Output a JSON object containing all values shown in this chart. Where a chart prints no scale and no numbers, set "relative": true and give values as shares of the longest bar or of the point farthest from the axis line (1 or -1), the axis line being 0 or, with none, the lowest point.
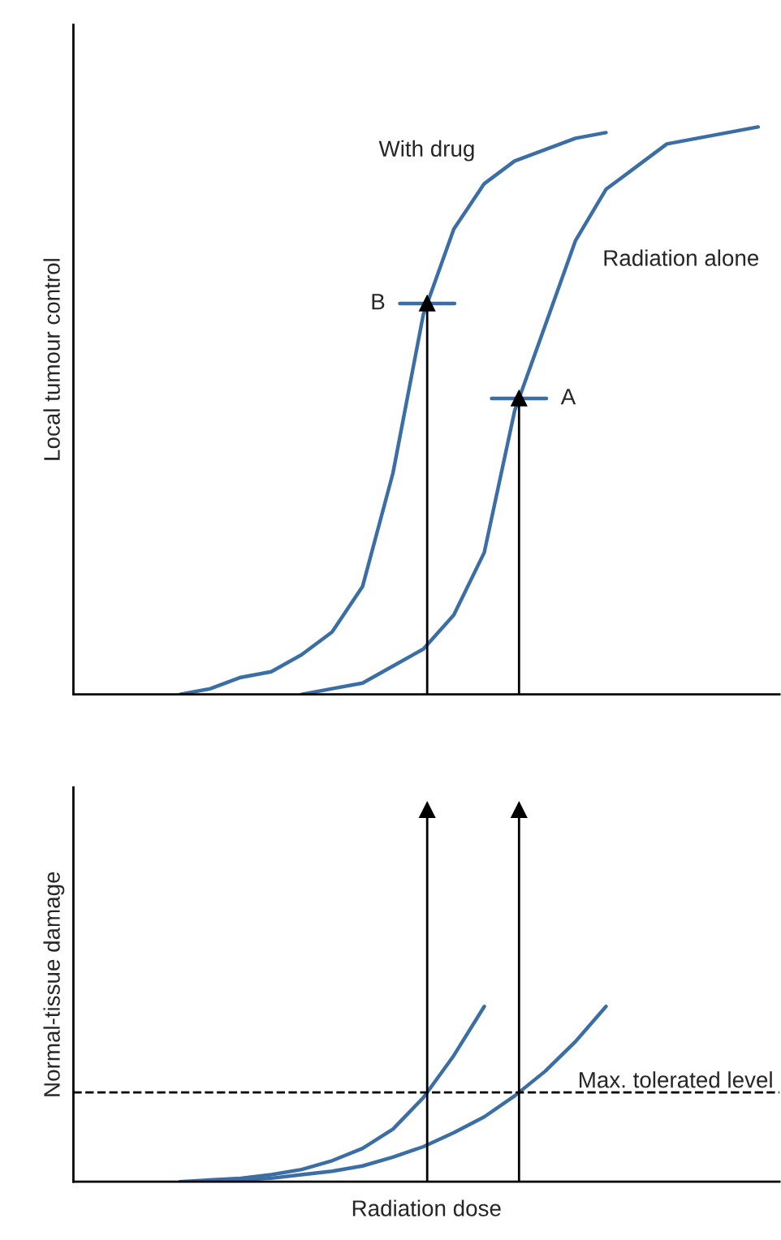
{
  "chart_data": [
    {
      "type": "line",
      "relative": true,
      "ylabel": "Local tumour control",
      "categories": [
        null,
        null,
        null,
        null,
        null,
        null,
        null,
        null,
        null,
        null,
        null,
        null,
        null,
        null,
        null,
        null,
        null,
        null,
        null,
        null,
        null,
        null,
        null
      ],
      "series": [
        {
          "name": "With drug",
          "color": "#3a6ea5",
          "values": [
            null,
            null,
            null,
            0,
            0.01,
            0.03,
            0.04,
            0.07,
            0.11,
            0.19,
            0.39,
            0.67,
            0.82,
            0.9,
            0.94,
            0.96,
            0.98,
            0.99,
            null,
            null,
            null,
            null,
            null
          ]
        },
        {
          "name": "Radiation alone",
          "color": "#3a6ea5",
          "values": [
            null,
            null,
            null,
            null,
            null,
            null,
            null,
            0,
            0.01,
            0.02,
            0.05,
            0.08,
            0.14,
            0.25,
            0.5,
            0.65,
            0.8,
            0.89,
            0.93,
            0.97,
            0.98,
            0.99,
            1.0
          ]
        }
      ],
      "annotations": [
        "B",
        "A"
      ]
    },
    {
      "type": "line",
      "relative": true,
      "ylabel": "Normal-tissue damage",
      "xlabel": "Radiation dose",
      "categories": [
        null,
        null,
        null,
        null,
        null,
        null,
        null,
        null,
        null,
        null,
        null,
        null,
        null,
        null,
        null,
        null,
        null,
        null,
        null,
        null,
        null,
        null,
        null
      ],
      "series": [
        {
          "color": "#3a6ea5",
          "values": [
            null,
            null,
            null,
            0,
            0.01,
            0.02,
            0.04,
            0.07,
            0.12,
            0.19,
            0.3,
            0.48,
            0.72,
            1.0,
            null,
            null,
            null,
            null,
            null,
            null,
            null,
            null,
            null
          ]
        },
        {
          "color": "#3a6ea5",
          "values": [
            null,
            null,
            null,
            null,
            0,
            0.01,
            0.02,
            0.04,
            0.06,
            0.09,
            0.14,
            0.2,
            0.28,
            0.37,
            0.49,
            0.63,
            0.8,
            1.0,
            null,
            null,
            null,
            null,
            null
          ]
        }
      ],
      "ref_lines": [
        {
          "axis": "y",
          "value": 0.51,
          "label": "Max. tolerated level",
          "color": "#000000",
          "line_style": "dashed"
        }
      ]
    }
  ]
}
